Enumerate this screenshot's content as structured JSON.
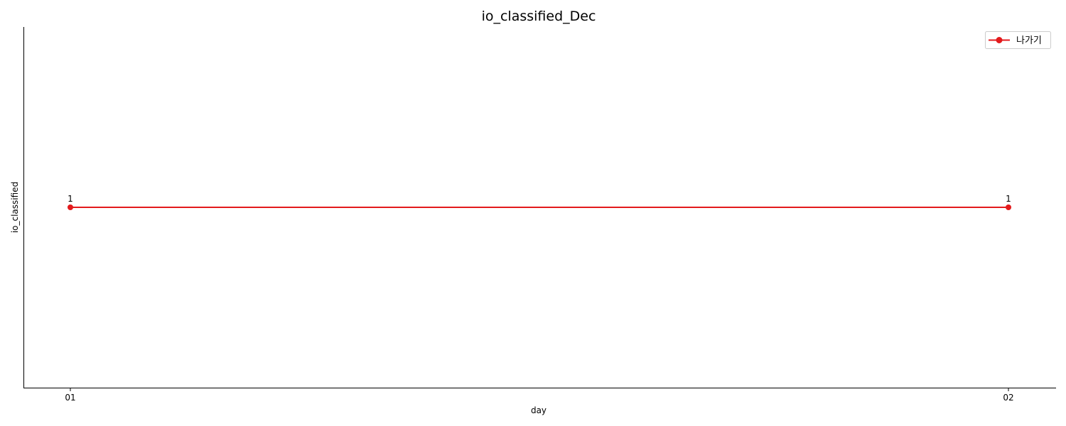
{
  "chart_data": {
    "type": "line",
    "title": "io_classified_Dec",
    "xlabel": "day",
    "ylabel": "io_classified",
    "categories": [
      "01",
      "02"
    ],
    "series": [
      {
        "name": "나가기",
        "values": [
          1,
          1
        ],
        "data_labels": [
          "1",
          "1"
        ],
        "color": "#e31a1c",
        "marker": "circle"
      }
    ],
    "y_ticks_visible": false,
    "grid": false,
    "legend_position": "top-right"
  }
}
